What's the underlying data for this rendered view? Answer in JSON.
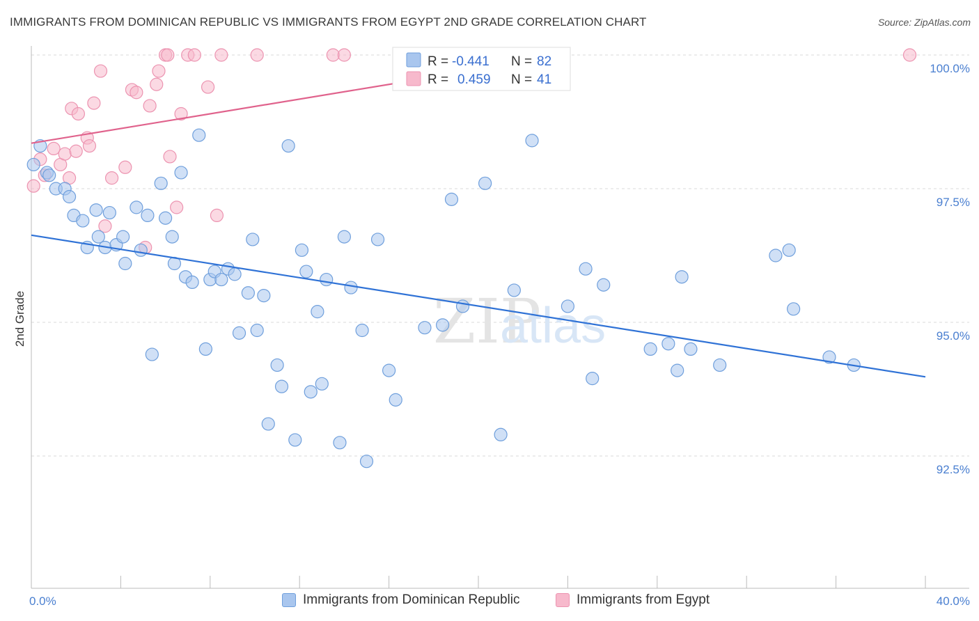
{
  "title": "IMMIGRANTS FROM DOMINICAN REPUBLIC VS IMMIGRANTS FROM EGYPT 2ND GRADE CORRELATION CHART",
  "source": "Source: ZipAtlas.com",
  "watermark": {
    "zip": "ZIP",
    "atlas": "atlas"
  },
  "colors": {
    "blue_fill": "#a9c6ee",
    "blue_stroke": "#6f9fdc",
    "blue_line": "#2f72d6",
    "pink_fill": "#f7b9cc",
    "pink_stroke": "#ec93b0",
    "pink_line": "#e0628c",
    "tick_label": "#4a7fd0",
    "grid": "#d8d8d8"
  },
  "legend": {
    "r_label": "R =",
    "n_label": "N =",
    "series": [
      {
        "r": "-0.441",
        "n": "82"
      },
      {
        "r": "0.459",
        "n": "41"
      }
    ]
  },
  "chart_data": {
    "type": "scatter",
    "title": "IMMIGRANTS FROM DOMINICAN REPUBLIC VS IMMIGRANTS FROM EGYPT 2ND GRADE CORRELATION CHART",
    "xlabel": "",
    "ylabel": "2nd Grade",
    "xlim": [
      0,
      40
    ],
    "ylim": [
      90.0,
      100.3
    ],
    "x_tick_labels": [
      "0.0%",
      "40.0%"
    ],
    "y_ticks": [
      92.5,
      95.0,
      97.5,
      100.0
    ],
    "y_tick_labels": [
      "92.5%",
      "95.0%",
      "97.5%",
      "100.0%"
    ],
    "grid": true,
    "legend_position": "top-center",
    "series": [
      {
        "name": "Immigrants from Dominican Republic",
        "color": "#a9c6ee",
        "trend": {
          "x": [
            0,
            40
          ],
          "y": [
            96.63,
            93.98
          ]
        },
        "points": [
          [
            0.1,
            97.95
          ],
          [
            0.4,
            98.3
          ],
          [
            0.7,
            97.8
          ],
          [
            0.8,
            97.75
          ],
          [
            1.1,
            97.5
          ],
          [
            1.5,
            97.5
          ],
          [
            1.7,
            97.35
          ],
          [
            1.9,
            97.0
          ],
          [
            2.3,
            96.9
          ],
          [
            2.5,
            96.4
          ],
          [
            2.9,
            97.1
          ],
          [
            3.0,
            96.6
          ],
          [
            3.3,
            96.4
          ],
          [
            3.5,
            97.05
          ],
          [
            3.8,
            96.45
          ],
          [
            4.2,
            96.1
          ],
          [
            4.1,
            96.6
          ],
          [
            4.7,
            97.15
          ],
          [
            4.9,
            96.35
          ],
          [
            5.2,
            97.0
          ],
          [
            5.4,
            94.4
          ],
          [
            5.8,
            97.6
          ],
          [
            6.0,
            96.95
          ],
          [
            6.3,
            96.6
          ],
          [
            6.4,
            96.1
          ],
          [
            6.7,
            97.8
          ],
          [
            6.9,
            95.85
          ],
          [
            7.2,
            95.75
          ],
          [
            7.5,
            98.5
          ],
          [
            7.8,
            94.5
          ],
          [
            8.0,
            95.8
          ],
          [
            8.2,
            95.95
          ],
          [
            8.5,
            95.8
          ],
          [
            8.8,
            96.0
          ],
          [
            9.1,
            95.9
          ],
          [
            9.3,
            94.8
          ],
          [
            9.7,
            95.55
          ],
          [
            9.9,
            96.55
          ],
          [
            10.1,
            94.85
          ],
          [
            10.4,
            95.5
          ],
          [
            10.6,
            93.1
          ],
          [
            11.0,
            94.2
          ],
          [
            11.2,
            93.8
          ],
          [
            11.5,
            98.3
          ],
          [
            11.8,
            92.8
          ],
          [
            12.1,
            96.35
          ],
          [
            12.3,
            95.95
          ],
          [
            12.5,
            93.7
          ],
          [
            12.8,
            95.2
          ],
          [
            13.0,
            93.85
          ],
          [
            13.2,
            95.8
          ],
          [
            13.8,
            92.75
          ],
          [
            14.0,
            96.6
          ],
          [
            14.3,
            95.65
          ],
          [
            14.8,
            94.85
          ],
          [
            15.0,
            92.4
          ],
          [
            15.5,
            96.55
          ],
          [
            16.0,
            94.1
          ],
          [
            16.3,
            93.55
          ],
          [
            17.6,
            94.9
          ],
          [
            18.4,
            94.95
          ],
          [
            18.8,
            97.3
          ],
          [
            19.3,
            95.3
          ],
          [
            20.3,
            97.6
          ],
          [
            21.0,
            92.9
          ],
          [
            21.6,
            95.6
          ],
          [
            22.4,
            98.4
          ],
          [
            24.0,
            95.3
          ],
          [
            24.8,
            96.0
          ],
          [
            25.1,
            93.95
          ],
          [
            25.6,
            95.7
          ],
          [
            27.7,
            94.5
          ],
          [
            28.5,
            94.6
          ],
          [
            28.9,
            94.1
          ],
          [
            29.1,
            95.85
          ],
          [
            29.5,
            94.5
          ],
          [
            30.8,
            94.2
          ],
          [
            33.3,
            96.25
          ],
          [
            33.9,
            96.35
          ],
          [
            34.1,
            95.25
          ],
          [
            35.7,
            94.35
          ],
          [
            36.8,
            94.2
          ]
        ]
      },
      {
        "name": "Immigrants from Egypt",
        "color": "#f7b9cc",
        "trend": {
          "x": [
            0,
            24
          ],
          "y": [
            98.35,
            100.0
          ]
        },
        "points": [
          [
            0.1,
            97.55
          ],
          [
            0.4,
            98.05
          ],
          [
            0.6,
            97.75
          ],
          [
            1.0,
            98.25
          ],
          [
            1.3,
            97.95
          ],
          [
            1.5,
            98.15
          ],
          [
            1.7,
            97.7
          ],
          [
            1.8,
            99.0
          ],
          [
            2.0,
            98.2
          ],
          [
            2.1,
            98.9
          ],
          [
            2.5,
            98.45
          ],
          [
            2.6,
            98.3
          ],
          [
            2.8,
            99.1
          ],
          [
            3.1,
            99.7
          ],
          [
            3.3,
            96.8
          ],
          [
            3.6,
            97.7
          ],
          [
            4.2,
            97.9
          ],
          [
            4.5,
            99.35
          ],
          [
            4.7,
            99.3
          ],
          [
            5.1,
            96.4
          ],
          [
            5.3,
            99.05
          ],
          [
            5.6,
            99.45
          ],
          [
            5.7,
            99.7
          ],
          [
            6.0,
            100.0
          ],
          [
            6.1,
            100.0
          ],
          [
            6.2,
            98.1
          ],
          [
            6.5,
            97.15
          ],
          [
            6.7,
            98.9
          ],
          [
            7.0,
            100.0
          ],
          [
            7.3,
            100.0
          ],
          [
            7.9,
            99.4
          ],
          [
            8.3,
            97.0
          ],
          [
            8.5,
            100.0
          ],
          [
            10.1,
            100.0
          ],
          [
            13.5,
            100.0
          ],
          [
            14.0,
            100.0
          ],
          [
            17.2,
            100.0
          ],
          [
            19.3,
            100.0
          ],
          [
            20.0,
            100.0
          ],
          [
            21.0,
            100.0
          ],
          [
            39.3,
            100.0
          ]
        ]
      }
    ]
  }
}
